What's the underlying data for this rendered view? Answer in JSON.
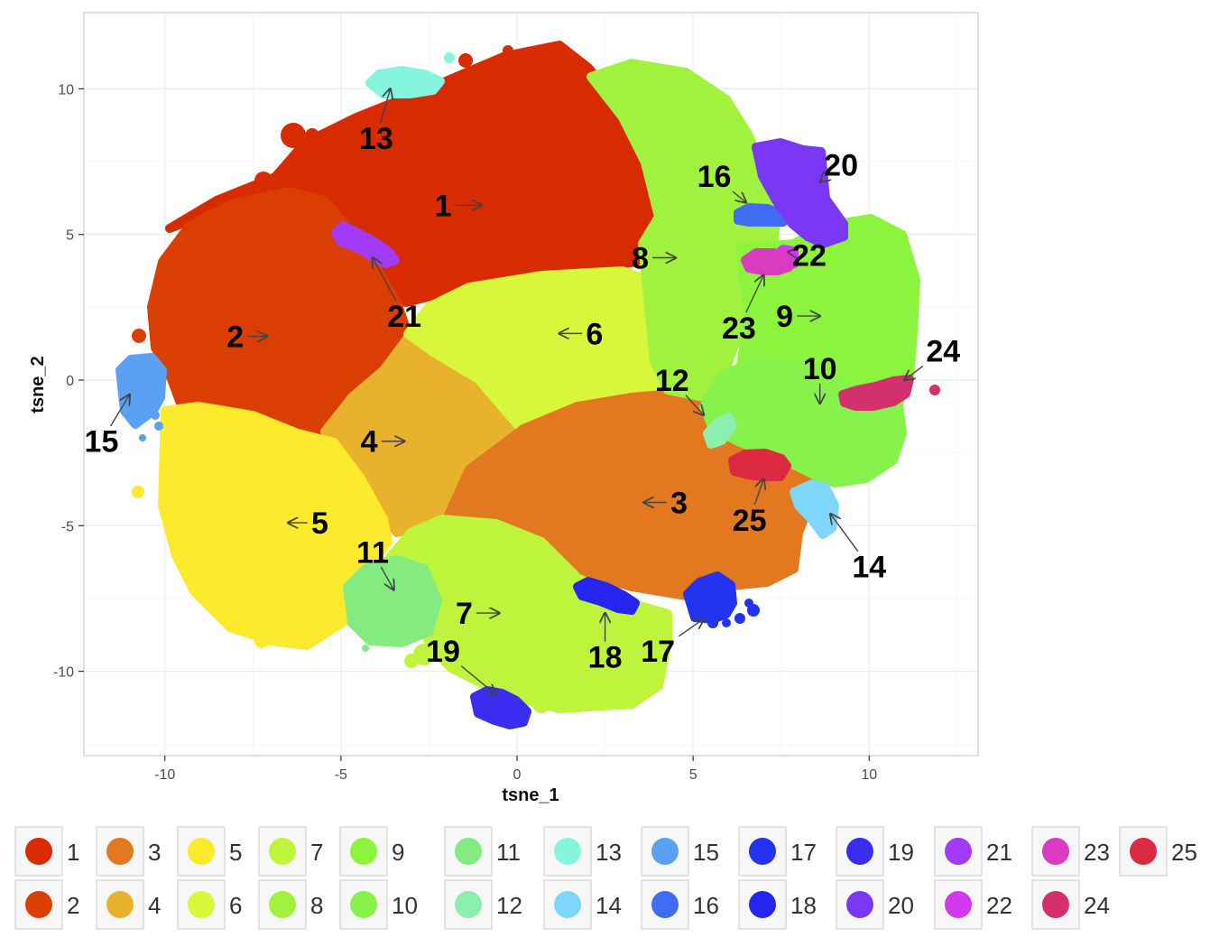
{
  "chart_data": {
    "type": "scatter",
    "xlabel": "tsne_1",
    "ylabel": "tsne_2",
    "xlim": [
      -12.3,
      13
    ],
    "ylim": [
      -12.7,
      12.6
    ],
    "xticks": [
      -10,
      -5,
      0,
      5,
      10
    ],
    "xtick_labels": [
      "-10",
      "-5",
      "0",
      "5",
      "10"
    ],
    "yticks": [
      10,
      5,
      0,
      -5,
      -10
    ],
    "ytick_labels": [
      "10",
      "5",
      "0",
      "-5",
      "-10"
    ],
    "grid": true,
    "legend_position": "bottom",
    "clusters": [
      {
        "name": "1",
        "color": "#D92B02",
        "label_xy": [
          -2.1,
          6.0
        ],
        "arrow_to": [
          -1.0,
          6.0
        ]
      },
      {
        "name": "2",
        "color": "#DB3E03",
        "label_xy": [
          -8.0,
          1.5
        ],
        "arrow_to": [
          -7.1,
          1.5
        ]
      },
      {
        "name": "3",
        "color": "#E27920",
        "label_xy": [
          4.6,
          -4.2
        ],
        "arrow_to": [
          3.6,
          -4.2
        ]
      },
      {
        "name": "4",
        "color": "#E9B22C",
        "label_xy": [
          -4.2,
          -2.1
        ],
        "arrow_to": [
          -3.2,
          -2.1
        ]
      },
      {
        "name": "5",
        "color": "#FCEA2C",
        "label_xy": [
          -5.6,
          -4.9
        ],
        "arrow_to": [
          -6.5,
          -4.9
        ]
      },
      {
        "name": "6",
        "color": "#D8F63A",
        "label_xy": [
          2.2,
          1.6
        ],
        "arrow_to": [
          1.2,
          1.6
        ]
      },
      {
        "name": "7",
        "color": "#BEF43C",
        "label_xy": [
          -1.5,
          -8.0
        ],
        "arrow_to": [
          -0.5,
          -8.0
        ]
      },
      {
        "name": "8",
        "color": "#A1F23E",
        "label_xy": [
          3.5,
          4.2
        ],
        "arrow_to": [
          4.5,
          4.2
        ]
      },
      {
        "name": "9",
        "color": "#8DF43E",
        "label_xy": [
          7.6,
          2.2
        ],
        "arrow_to": [
          8.6,
          2.2
        ]
      },
      {
        "name": "10",
        "color": "#86F24B",
        "label_xy": [
          8.6,
          0.4
        ],
        "arrow_to": [
          8.6,
          -0.8
        ]
      },
      {
        "name": "11",
        "color": "#83EB7F",
        "label_xy": [
          -4.1,
          -5.9
        ],
        "arrow_to": [
          -3.5,
          -7.2
        ]
      },
      {
        "name": "12",
        "color": "#8CEFAD",
        "label_xy": [
          4.4,
          0.0
        ],
        "arrow_to": [
          5.3,
          -1.2
        ]
      },
      {
        "name": "13",
        "color": "#86F5DD",
        "label_xy": [
          -4.0,
          8.3
        ],
        "arrow_to": [
          -3.6,
          10.0
        ]
      },
      {
        "name": "14",
        "color": "#7ED6FA",
        "label_xy": [
          10.0,
          -6.4
        ],
        "arrow_to": [
          8.9,
          -4.6
        ]
      },
      {
        "name": "15",
        "color": "#5AA1F4",
        "label_xy": [
          -11.8,
          -2.1
        ],
        "arrow_to": [
          -11.0,
          -0.5
        ]
      },
      {
        "name": "16",
        "color": "#3F6CF0",
        "label_xy": [
          5.6,
          7.0
        ],
        "arrow_to": [
          6.5,
          6.1
        ]
      },
      {
        "name": "17",
        "color": "#2433F0",
        "label_xy": [
          4.0,
          -9.3
        ],
        "arrow_to": [
          5.3,
          -8.2
        ]
      },
      {
        "name": "18",
        "color": "#2625EF",
        "label_xy": [
          2.5,
          -9.5
        ],
        "arrow_to": [
          2.5,
          -8.0
        ]
      },
      {
        "name": "19",
        "color": "#3A2CF0",
        "label_xy": [
          -2.1,
          -9.3
        ],
        "arrow_to": [
          -0.6,
          -10.8
        ]
      },
      {
        "name": "20",
        "color": "#7A38F5",
        "label_xy": [
          9.2,
          7.4
        ],
        "arrow_to": [
          8.6,
          6.8
        ]
      },
      {
        "name": "21",
        "color": "#A33AF5",
        "label_xy": [
          -3.2,
          2.2
        ],
        "arrow_to": [
          -4.1,
          4.2
        ]
      },
      {
        "name": "22",
        "color": "#D338EE",
        "label_xy": [
          8.3,
          4.3
        ],
        "arrow_to": [
          7.7,
          4.4
        ]
      },
      {
        "name": "23",
        "color": "#DB3BC0",
        "label_xy": [
          6.3,
          1.8
        ],
        "arrow_to": [
          7.0,
          3.6
        ]
      },
      {
        "name": "24",
        "color": "#D5306E",
        "label_xy": [
          12.1,
          1.0
        ],
        "arrow_to": [
          11.0,
          0.0
        ]
      },
      {
        "name": "25",
        "color": "#DC2A40",
        "label_xy": [
          6.6,
          -4.8
        ],
        "arrow_to": [
          7.0,
          -3.4
        ]
      }
    ]
  }
}
